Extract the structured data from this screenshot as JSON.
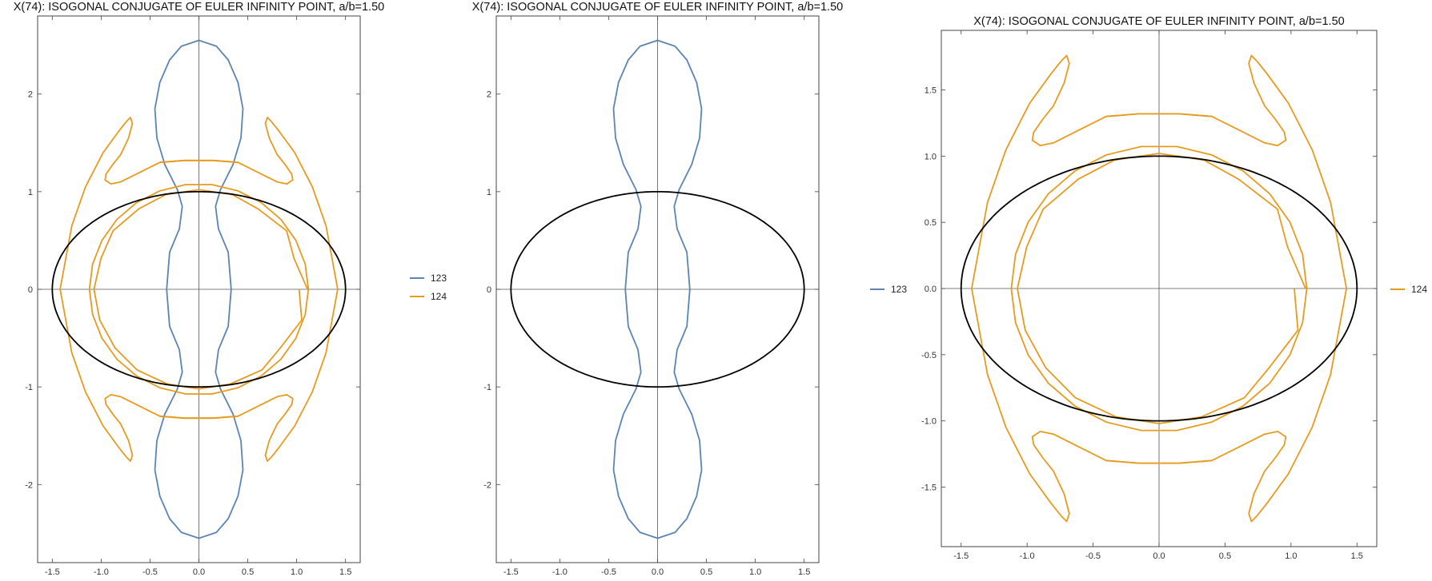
{
  "colors": {
    "123": "#5b84b1",
    "124": "#e69b1f",
    "ellipse": "#000000"
  },
  "chart_data": [
    {
      "type": "line",
      "title": "X(74): ISOGONAL CONJUGATE OF EULER INFINITY POINT, a/b=1.50",
      "xlabel": "",
      "ylabel": "",
      "xlim": [
        -1.65,
        1.65
      ],
      "ylim": [
        -2.8,
        2.8
      ],
      "xticks": [
        -1.5,
        -1.0,
        -0.5,
        0.0,
        0.5,
        1.0,
        1.5
      ],
      "xtick_labels": [
        "-1.5",
        "-1.0",
        "-0.5",
        "0.0",
        "0.5",
        "1.0",
        "1.5"
      ],
      "yticks": [
        -2,
        -1,
        0,
        1,
        2
      ],
      "ytick_labels": [
        "-2",
        "-1",
        "0",
        "1",
        "2"
      ],
      "grid": false,
      "legend": {
        "placement": "right",
        "entries": [
          "123",
          "124"
        ]
      },
      "series": [
        {
          "name": "123",
          "kind": "peanut",
          "peak_y": 2.55,
          "waist_x": 0.17,
          "bulge_x": 0.33,
          "max_x": 0.45
        },
        {
          "name": "124",
          "kind": "locus",
          "outer_y": 1.76,
          "outer_x": 1.42,
          "flat_top_y": 1.32,
          "inner_x": 1.12
        },
        {
          "name": "",
          "kind": "ellipse",
          "a": 1.5,
          "b": 1.0
        }
      ]
    },
    {
      "type": "line",
      "title": "X(74): ISOGONAL CONJUGATE OF EULER INFINITY POINT, a/b=1.50",
      "xlabel": "",
      "ylabel": "",
      "xlim": [
        -1.65,
        1.65
      ],
      "ylim": [
        -2.8,
        2.8
      ],
      "xticks": [
        -1.5,
        -1.0,
        -0.5,
        0.0,
        0.5,
        1.0,
        1.5
      ],
      "xtick_labels": [
        "-1.5",
        "-1.0",
        "-0.5",
        "0.0",
        "0.5",
        "1.0",
        "1.5"
      ],
      "yticks": [
        -2,
        -1,
        0,
        1,
        2
      ],
      "ytick_labels": [
        "-2",
        "-1",
        "0",
        "1",
        "2"
      ],
      "grid": false,
      "legend": {
        "placement": "right",
        "entries": [
          "123"
        ]
      },
      "series": [
        {
          "name": "123",
          "kind": "peanut",
          "peak_y": 2.55,
          "waist_x": 0.17,
          "bulge_x": 0.33,
          "max_x": 0.45
        },
        {
          "name": "",
          "kind": "ellipse",
          "a": 1.5,
          "b": 1.0
        }
      ]
    },
    {
      "type": "line",
      "title": "X(74): ISOGONAL CONJUGATE OF EULER INFINITY POINT, a/b=1.50",
      "xlabel": "",
      "ylabel": "",
      "xlim": [
        -1.65,
        1.65
      ],
      "ylim": [
        -1.95,
        1.95
      ],
      "xticks": [
        -1.5,
        -1.0,
        -0.5,
        0.0,
        0.5,
        1.0,
        1.5
      ],
      "xtick_labels": [
        "-1.5",
        "-1.0",
        "-0.5",
        "0.0",
        "0.5",
        "1.0",
        "1.5"
      ],
      "yticks": [
        -1.5,
        -1.0,
        -0.5,
        0.0,
        0.5,
        1.0,
        1.5
      ],
      "ytick_labels": [
        "-1.5",
        "-1.0",
        "-0.5",
        "0.0",
        "0.5",
        "1.0",
        "1.5"
      ],
      "grid": false,
      "legend": {
        "placement": "right",
        "entries": [
          "124"
        ]
      },
      "series": [
        {
          "name": "124",
          "kind": "locus",
          "outer_y": 1.76,
          "outer_x": 1.42,
          "flat_top_y": 1.32,
          "inner_x": 1.12
        },
        {
          "name": "",
          "kind": "ellipse",
          "a": 1.5,
          "b": 1.0
        }
      ]
    }
  ]
}
